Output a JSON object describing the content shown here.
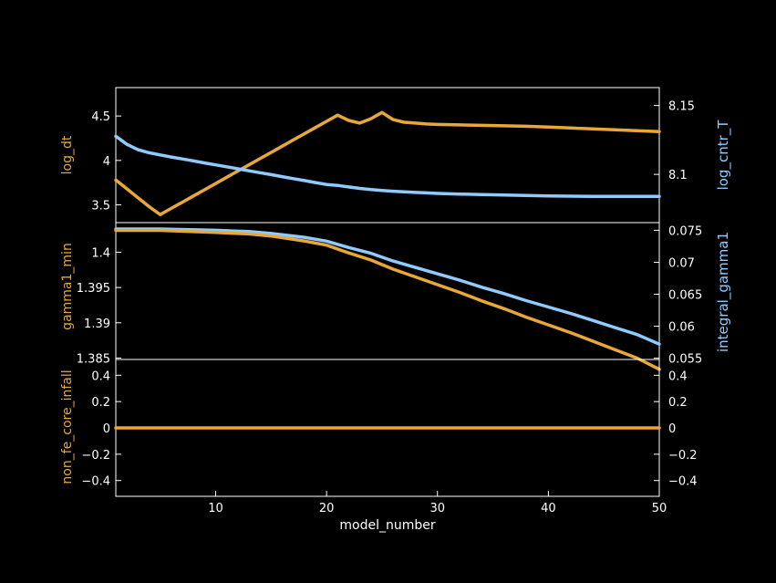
{
  "colors": {
    "background": "#000000",
    "frame": "#ffffff",
    "orange": "#e8a838",
    "blue": "#8fcbff"
  },
  "chart_data": [
    {
      "type": "line",
      "panel": "top",
      "xlabel": "",
      "xlim": [
        1,
        50
      ],
      "ylabel_left": "log_dt",
      "ylabel_right": "log_cntr_T",
      "ylim_left": [
        3.3,
        4.82
      ],
      "ylim_right": [
        8.065,
        8.163
      ],
      "yticks_left": [
        3.5,
        4,
        4.5
      ],
      "yticks_left_labels": [
        "3.5",
        "4",
        "4.5"
      ],
      "yticks_right": [
        8.1,
        8.15
      ],
      "yticks_right_labels": [
        "8.1",
        "8.15"
      ],
      "series": [
        {
          "axis": "left",
          "color": "#e8a838",
          "x": [
            1,
            2,
            3,
            4,
            5,
            6,
            7,
            8,
            9,
            10,
            11,
            12,
            13,
            14,
            15,
            16,
            17,
            18,
            19,
            20,
            21,
            22,
            23,
            24,
            25,
            26,
            27,
            28,
            29,
            30,
            32,
            34,
            36,
            38,
            40,
            42,
            44,
            46,
            48,
            50
          ],
          "y": [
            3.78,
            3.68,
            3.58,
            3.48,
            3.39,
            3.46,
            3.53,
            3.6,
            3.67,
            3.74,
            3.81,
            3.88,
            3.95,
            4.02,
            4.09,
            4.16,
            4.23,
            4.3,
            4.37,
            4.44,
            4.51,
            4.45,
            4.42,
            4.47,
            4.54,
            4.46,
            4.43,
            4.42,
            4.41,
            4.405,
            4.4,
            4.395,
            4.39,
            4.385,
            4.375,
            4.365,
            4.355,
            4.345,
            4.335,
            4.325
          ]
        },
        {
          "axis": "right",
          "color": "#8fcbff",
          "x": [
            1,
            2,
            3,
            4,
            5,
            6,
            7,
            8,
            9,
            10,
            11,
            12,
            13,
            14,
            15,
            16,
            17,
            18,
            19,
            20,
            21,
            22,
            23,
            24,
            25,
            26,
            27,
            28,
            29,
            30,
            32,
            34,
            36,
            38,
            40,
            42,
            44,
            46,
            48,
            50
          ],
          "y": [
            8.1277,
            8.1218,
            8.1179,
            8.1157,
            8.1141,
            8.1126,
            8.1112,
            8.1098,
            8.1083,
            8.1069,
            8.1055,
            8.1041,
            8.1026,
            8.1012,
            8.0998,
            8.0984,
            8.0969,
            8.0955,
            8.0941,
            8.0927,
            8.092,
            8.0909,
            8.0898,
            8.089,
            8.0884,
            8.0878,
            8.0873,
            8.0869,
            8.0866,
            8.0862,
            8.0857,
            8.0853,
            8.085,
            8.0847,
            8.0844,
            8.0842,
            8.0841,
            8.084,
            8.084,
            8.084
          ]
        }
      ]
    },
    {
      "type": "line",
      "panel": "middle",
      "xlabel": "",
      "xlim": [
        1,
        50
      ],
      "ylabel_left": "gamma1_min",
      "ylabel_right": "integral_gamma1",
      "ylim_left": [
        1.3848,
        1.4042
      ],
      "ylim_right": [
        0.0548,
        0.0762
      ],
      "yticks_left": [
        1.385,
        1.39,
        1.395,
        1.4
      ],
      "yticks_left_labels": [
        "1.385",
        "1.39",
        "1.395",
        "1.4"
      ],
      "yticks_right": [
        0.055,
        0.06,
        0.065,
        0.07,
        0.075
      ],
      "yticks_right_labels": [
        "0.055",
        "0.06",
        "0.065",
        "0.07",
        "0.075"
      ],
      "series": [
        {
          "axis": "right",
          "color": "#8fcbff",
          "x": [
            1,
            5,
            10,
            13,
            15,
            18,
            20,
            22,
            24,
            26,
            28,
            30,
            32,
            34,
            36,
            38,
            40,
            42,
            44,
            46,
            48,
            50
          ],
          "y": [
            0.0752,
            0.0752,
            0.075,
            0.0748,
            0.0745,
            0.0739,
            0.0733,
            0.0723,
            0.0714,
            0.0702,
            0.0692,
            0.0682,
            0.0672,
            0.0661,
            0.0651,
            0.064,
            0.063,
            0.062,
            0.0609,
            0.0598,
            0.0587,
            0.0572
          ]
        },
        {
          "axis": "left",
          "color": "#e8a838",
          "x": [
            1,
            5,
            10,
            13,
            15,
            18,
            20,
            22,
            24,
            26,
            28,
            30,
            32,
            34,
            36,
            38,
            40,
            42,
            44,
            46,
            48,
            50
          ],
          "y": [
            1.4031,
            1.4031,
            1.4028,
            1.4026,
            1.4023,
            1.4016,
            1.401,
            1.3999,
            1.3989,
            1.3976,
            1.3965,
            1.3954,
            1.3943,
            1.3931,
            1.392,
            1.3908,
            1.3897,
            1.3886,
            1.3874,
            1.3862,
            1.385,
            1.3834
          ]
        }
      ]
    },
    {
      "type": "line",
      "panel": "bottom",
      "xlabel": "model_number",
      "xlim": [
        1,
        50
      ],
      "xticks": [
        10,
        20,
        30,
        40,
        50
      ],
      "xtick_labels": [
        "10",
        "20",
        "30",
        "40",
        "50"
      ],
      "ylabel_left": "non_fe_core_infall",
      "ylabel_right": "",
      "ylim_left": [
        -0.52,
        0.52
      ],
      "ylim_right": [
        -0.52,
        0.52
      ],
      "yticks_left": [
        -0.4,
        -0.2,
        0,
        0.2,
        0.4
      ],
      "yticks_left_labels": [
        "−0.4",
        "−0.2",
        "0",
        "0.2",
        "0.4"
      ],
      "yticks_right": [
        -0.4,
        -0.2,
        0,
        0.2,
        0.4
      ],
      "yticks_right_labels": [
        "−0.4",
        "−0.2",
        "0",
        "0.2",
        "0.4"
      ],
      "series": [
        {
          "axis": "left",
          "color": "#e8a838",
          "x": [
            1,
            50
          ],
          "y": [
            0,
            0
          ]
        }
      ]
    }
  ]
}
